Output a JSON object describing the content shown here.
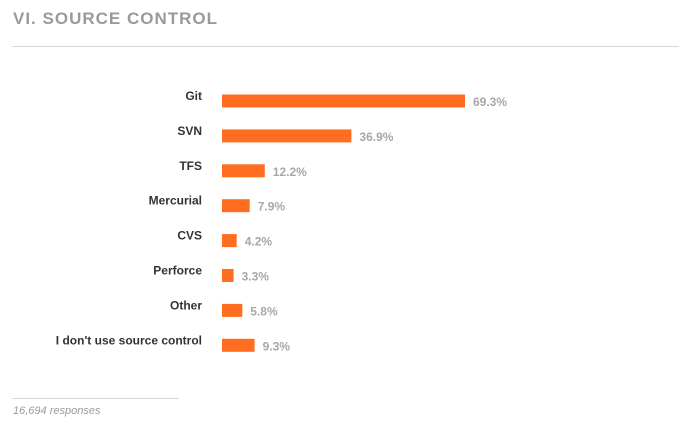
{
  "section": {
    "title": "VI. SOURCE CONTROL"
  },
  "footnote": "16,694 responses",
  "colors": {
    "bar": "#ff6e20",
    "title": "#9a9a9a",
    "value_label": "#a8a8a8",
    "category_label": "#333333"
  },
  "chart_data": {
    "type": "bar",
    "orientation": "horizontal",
    "title": "VI. SOURCE CONTROL",
    "categories": [
      "Git",
      "SVN",
      "TFS",
      "Mercurial",
      "CVS",
      "Perforce",
      "Other",
      "I don't use source control"
    ],
    "values": [
      69.3,
      36.9,
      12.2,
      7.9,
      4.2,
      3.3,
      5.8,
      9.3
    ],
    "value_labels": [
      "69.3%",
      "36.9%",
      "12.2%",
      "7.9%",
      "4.2%",
      "3.3%",
      "5.8%",
      "9.3%"
    ],
    "xlim": [
      0,
      69.3
    ],
    "grid": false,
    "legend": "none"
  }
}
